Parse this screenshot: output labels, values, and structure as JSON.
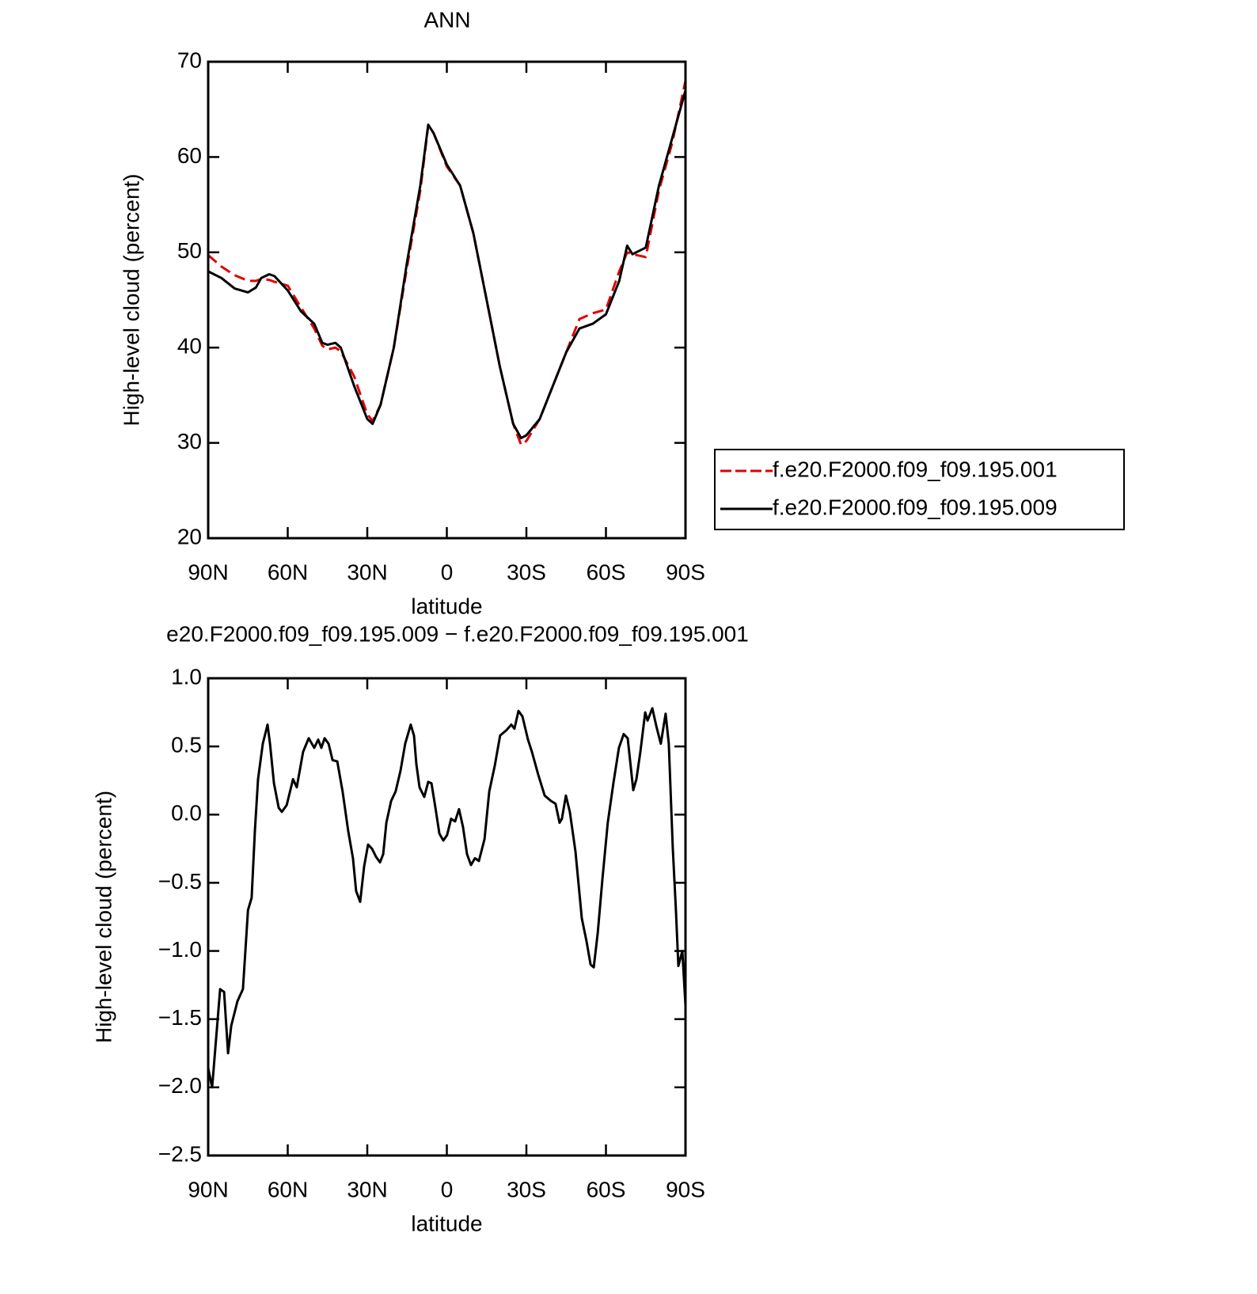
{
  "chart_data": [
    {
      "type": "line",
      "title": "ANN",
      "x_label": "latitude",
      "y_label": "High-level cloud (percent)",
      "xlim": [
        90,
        -90
      ],
      "ylim": [
        20,
        70
      ],
      "xticks": [
        {
          "value": 90,
          "label": "90N"
        },
        {
          "value": 60,
          "label": "60N"
        },
        {
          "value": 30,
          "label": "30N"
        },
        0,
        {
          "value": -30,
          "label": "30S"
        },
        {
          "value": -60,
          "label": "60S"
        },
        {
          "value": -90,
          "label": "90S"
        }
      ],
      "yticks": [
        20,
        30,
        40,
        50,
        60,
        70
      ],
      "legend": "right",
      "x": [
        90,
        85,
        80,
        75,
        72,
        70,
        67,
        65,
        60,
        55,
        50,
        47,
        45,
        42,
        40,
        35,
        30,
        28,
        25,
        20,
        15,
        10,
        7,
        5,
        0,
        -5,
        -10,
        -15,
        -20,
        -25,
        -28,
        -30,
        -35,
        -40,
        -45,
        -50,
        -55,
        -60,
        -65,
        -68,
        -70,
        -75,
        -80,
        -85,
        -90
      ],
      "series": [
        {
          "name": "f.e20.F2000.f09_f09.195.001",
          "color": "#e00000",
          "line_style": "dashed",
          "values": [
            49.7,
            48.5,
            47.6,
            47.0,
            47.0,
            47.2,
            47.1,
            46.9,
            46.5,
            44.2,
            42.0,
            40.2,
            39.8,
            40.0,
            39.6,
            37.0,
            33.0,
            32.3,
            34.0,
            40.0,
            48.5,
            56.5,
            63.3,
            62.5,
            59.0,
            57.0,
            52.0,
            45.0,
            38.0,
            32.0,
            29.8,
            30.2,
            32.5,
            36.0,
            39.5,
            43.0,
            43.6,
            44.0,
            48.0,
            50.0,
            49.8,
            49.5,
            56.5,
            61.5,
            68.0
          ]
        },
        {
          "name": "f.e20.F2000.f09_f09.195.009",
          "color": "#000000",
          "line_style": "solid",
          "values": [
            48.0,
            47.3,
            46.2,
            45.8,
            46.3,
            47.3,
            47.7,
            47.5,
            46.0,
            43.8,
            42.5,
            40.5,
            40.3,
            40.5,
            40.0,
            36.0,
            32.5,
            32.0,
            34.0,
            40.0,
            49.0,
            57.0,
            63.4,
            62.5,
            59.2,
            57.0,
            52.0,
            45.0,
            38.0,
            32.0,
            30.5,
            30.8,
            32.5,
            36.0,
            39.5,
            42.0,
            42.5,
            43.5,
            47.0,
            50.7,
            49.8,
            50.5,
            57.0,
            62.0,
            67.0
          ]
        }
      ]
    },
    {
      "type": "line",
      "title": "e20.F2000.f09_f09.195.009 − f.e20.F2000.f09_f09.195.001",
      "x_label": "latitude",
      "y_label": "High-level cloud (percent)",
      "xlim": [
        90,
        -90
      ],
      "ylim": [
        -2.5,
        1
      ],
      "xticks": [
        {
          "value": 90,
          "label": "90N"
        },
        {
          "value": 60,
          "label": "60N"
        },
        {
          "value": 30,
          "label": "30N"
        },
        0,
        {
          "value": -30,
          "label": "30S"
        },
        {
          "value": -60,
          "label": "60S"
        },
        {
          "value": -90,
          "label": "90S"
        }
      ],
      "yticks": [
        {
          "value": -2.5,
          "label": "−2.5"
        },
        {
          "value": -2,
          "label": "−2.0"
        },
        {
          "value": -1.5,
          "label": "−1.5"
        },
        {
          "value": -1,
          "label": "−1.0"
        },
        {
          "value": -0.5,
          "label": "−0.5"
        },
        {
          "value": 0,
          "label": "0.0"
        },
        {
          "value": 0.5,
          "label": "0.5"
        },
        {
          "value": 1,
          "label": "1.0"
        }
      ],
      "series": [
        {
          "color": "#000000",
          "line_style": "solid",
          "x": [
            90,
            88.5,
            85.5,
            84,
            82.5,
            81.3,
            79,
            76.9,
            75,
            73.6,
            72.4,
            71.2,
            69.4,
            67.6,
            66.7,
            65.2,
            63.4,
            62.2,
            60.4,
            58,
            56.6,
            54.2,
            52.1,
            50,
            48.5,
            47.3,
            46.1,
            44.6,
            43.1,
            41.3,
            39.3,
            37.2,
            35.4,
            34.2,
            32.7,
            31.2,
            29.7,
            28.2,
            26.7,
            25.2,
            24,
            22.8,
            21,
            19.3,
            17.5,
            15.7,
            13.6,
            12.4,
            11.5,
            10.3,
            8.5,
            7,
            5.8,
            4.3,
            2.8,
            1.3,
            -0.1,
            -1.6,
            -3.1,
            -4.6,
            -6.1,
            -7.6,
            -9.1,
            -10.6,
            -12.1,
            -14.2,
            -16,
            -18.1,
            -20.1,
            -22.5,
            -24.3,
            -25.5,
            -27,
            -28.5,
            -30.6,
            -32.1,
            -34.5,
            -36.9,
            -39.3,
            -41,
            -42.5,
            -43.4,
            -44.9,
            -46.4,
            -48.5,
            -50.9,
            -52.7,
            -54.2,
            -55.4,
            -56.9,
            -58.7,
            -60.7,
            -62.8,
            -64.9,
            -66.7,
            -68.2,
            -70.3,
            -71.5,
            -73,
            -74.8,
            -75.7,
            -77.5,
            -79,
            -80.7,
            -82.5,
            -83.7,
            -85.2,
            -86.4,
            -87.3,
            -88.8,
            -90
          ],
          "values": [
            -1.86,
            -2.0,
            -1.28,
            -1.3,
            -1.75,
            -1.55,
            -1.37,
            -1.28,
            -0.7,
            -0.61,
            -0.12,
            0.26,
            0.52,
            0.66,
            0.52,
            0.23,
            0.05,
            0.02,
            0.07,
            0.26,
            0.2,
            0.46,
            0.56,
            0.49,
            0.55,
            0.49,
            0.56,
            0.52,
            0.4,
            0.39,
            0.17,
            -0.12,
            -0.32,
            -0.56,
            -0.64,
            -0.38,
            -0.22,
            -0.25,
            -0.31,
            -0.35,
            -0.29,
            -0.06,
            0.1,
            0.17,
            0.32,
            0.52,
            0.66,
            0.58,
            0.37,
            0.2,
            0.13,
            0.24,
            0.23,
            0.05,
            -0.14,
            -0.19,
            -0.15,
            -0.03,
            -0.05,
            0.04,
            -0.09,
            -0.29,
            -0.37,
            -0.32,
            -0.34,
            -0.18,
            0.17,
            0.36,
            0.58,
            0.62,
            0.66,
            0.63,
            0.76,
            0.72,
            0.55,
            0.46,
            0.29,
            0.14,
            0.1,
            0.08,
            -0.06,
            -0.03,
            0.14,
            0.02,
            -0.27,
            -0.76,
            -0.93,
            -1.1,
            -1.12,
            -0.87,
            -0.47,
            -0.06,
            0.23,
            0.49,
            0.59,
            0.56,
            0.18,
            0.26,
            0.46,
            0.75,
            0.69,
            0.78,
            0.65,
            0.52,
            0.74,
            0.52,
            -0.24,
            -0.7,
            -1.11,
            -1.0,
            -1.4
          ]
        }
      ]
    }
  ]
}
